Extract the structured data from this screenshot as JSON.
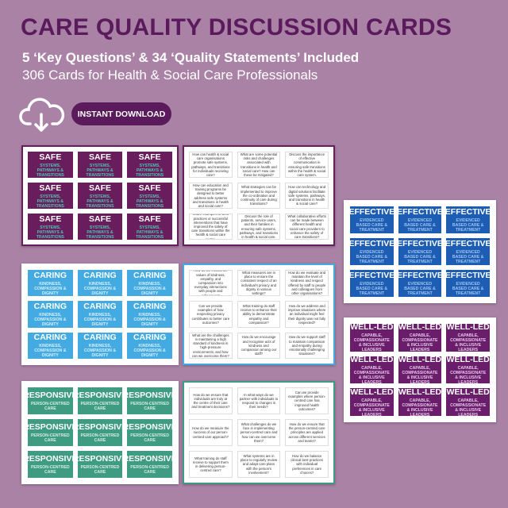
{
  "header": {
    "title": "CARE QUALITY DISCUSSION CARDS",
    "subtitle": "5 ‘Key Questions’ & 34 ‘Quality Statements’ Included",
    "subtitle2": "306 Cards for Health & Social Care Professionals",
    "button": "INSTANT DOWNLOAD"
  },
  "sheets": [
    {
      "title": "SAFE",
      "subtitle": "SYSTEMS, PATHWAYS & TRANSITIONS"
    },
    {
      "title": "EFFECTIVE",
      "subtitle": "EVIDENCED BASED CARE & TREATMENT"
    },
    {
      "title": "CARING",
      "subtitle": "KINDNESS, COMPASSION & DIGNITY"
    },
    {
      "title": "WELL-LED",
      "subtitle": "CAPABLE, COMPASSIONATE & INCLUSIVE LEADERS"
    },
    {
      "title": "RESPONSIVE",
      "subtitle": "PERSON-CENTRED CARE"
    }
  ],
  "question_sheets": [
    {
      "questions": [
        "How can health & social care organisations promote safe systems, pathways, and transitions for individuals receiving care?",
        "What are some potential risks and challenges associated with transitions in health and social care? How can these be mitigated?",
        "Discuss the importance of effective communication in ensuring safe transitions within the health & social care system.",
        "How can education and training programs be designed to better address safe systems and transitions in health and social care?",
        "What strategies can be implemented to improve the co-ordination and continuity of care during transitions?",
        "How can technology and digital solutions facilitate safe systems, pathways, and transitions in health & social care?",
        "Share examples of best practices or successful interventions that have improved the safety of care transitions within the health & social care sector.",
        "Discuss the role of patients, service users, and their families in ensuring safe systems, pathways, and transitions in health & social care.",
        "What collaborative efforts can be made between different health and social care providers to enhance the safety of care transitions?"
      ]
    },
    {
      "questions": [
        "How do we embed the values of kindness, empathy, and compassion into everyday interactions with people and colleagues?",
        "What measures are in place to ensure the consistent respect of an individual's privacy and dignity in various settings?",
        "How do we evaluate and maintain the level of kindness and respect offered by staff to people and colleagues from other organisations?",
        "Can we provide examples of how respecting privacy contributes to better care outcomes?",
        "What training do staff receive to enhance their ability to demonstrate empathy and compassion?",
        "How do we address and improve situations where an individual might feel their dignity was not fully respected?",
        "What are the challenges in maintaining a high standard of kindness in high-pressure environments, and how can we overcome them?",
        "How do we encourage and recognise acts of kindness and compassion among our staff?",
        "How do we support staff to maintain compassion and empathy during emotionally challenging situations?"
      ]
    },
    {
      "questions": [
        "How do we ensure that individuals are truly at the centre of their care and treatment decisions?",
        "In what ways do we partner with individuals to respond to changes in their needs?",
        "Can we provide examples where person-centred care has improved health outcomes?",
        "How do we measure the success of our person-centred care approach?",
        "What challenges do we face in implementing person-centred care and how can we overcome them?",
        "How do we ensure that the person-centred care principles are applied across different services and teams?",
        "What training do staff receive to support them in delivering person-centred care?",
        "What systems are in place to regularly review and adapt care plans with the person's involvement?",
        "How do we balance clinical best practices with individual preferences in care choices?"
      ]
    }
  ]
}
